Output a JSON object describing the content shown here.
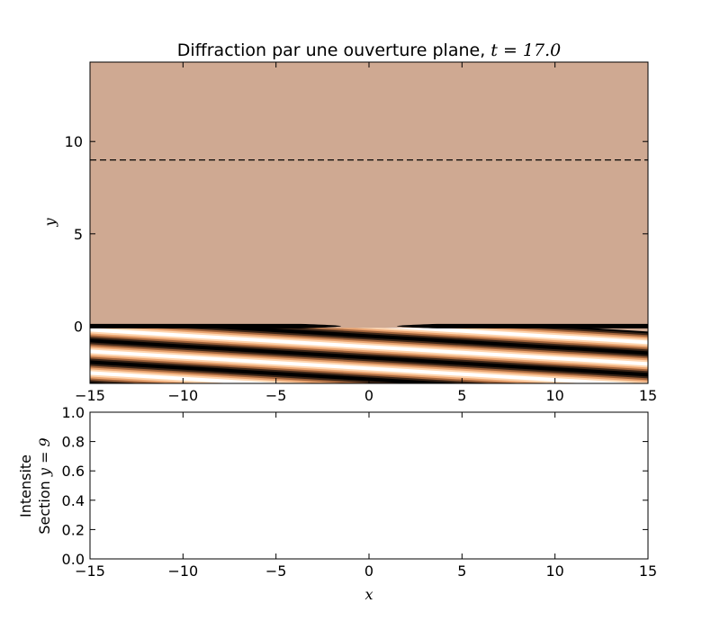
{
  "chart_data": [
    {
      "type": "heatmap",
      "title_text": "Diffraction par une ouverture plane, ",
      "title_math": "t = 17.0",
      "xlabel": "",
      "ylabel": "y",
      "xlim": [
        -15,
        15
      ],
      "ylim": [
        -3.1,
        14.3
      ],
      "xticks": [
        -15,
        -10,
        -5,
        0,
        5,
        10,
        15
      ],
      "yticks": [
        0,
        5,
        10
      ],
      "colormap": "copper",
      "background_color": "#cfa992",
      "section_line": {
        "y": 9,
        "style": "dashed"
      },
      "screen": {
        "y": 0,
        "left_segment": [
          -15,
          -1.5
        ],
        "right_segment": [
          1.5,
          15
        ]
      },
      "incident_wave": {
        "stripe_count": 5,
        "slope_note": "oblique plane wave below the screen"
      }
    },
    {
      "type": "line",
      "xlabel": "x",
      "ylabel_lines": [
        "Intensite",
        "Section "
      ],
      "ylabel_math": "y = 9",
      "xlim": [
        -15,
        15
      ],
      "ylim": [
        0.0,
        1.0
      ],
      "xticks": [
        -15,
        -10,
        -5,
        0,
        5,
        10,
        15
      ],
      "yticks": [
        0.0,
        0.2,
        0.4,
        0.6,
        0.8,
        1.0
      ],
      "series": []
    }
  ]
}
